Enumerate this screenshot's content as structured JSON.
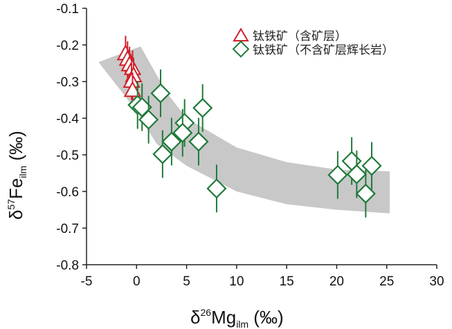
{
  "chart_data": {
    "type": "scatter",
    "xlabel": {
      "main": "δ",
      "sup": "26",
      "base": "Mg",
      "sub": "ilm",
      "unit": " (‰)"
    },
    "ylabel": {
      "main": "δ",
      "sup": "57",
      "base": "Fe",
      "sub": "ilm",
      "unit": " (‰)"
    },
    "xlim": [
      -5,
      30
    ],
    "ylim": [
      -0.8,
      -0.1
    ],
    "xticks": [
      -5,
      0,
      5,
      10,
      15,
      20,
      25,
      30
    ],
    "yticks": [
      -0.1,
      -0.2,
      -0.3,
      -0.4,
      -0.5,
      -0.6,
      -0.7,
      -0.8
    ],
    "ytick_labels": [
      "-0.1",
      "-0.2",
      "-0.3",
      "-0.4",
      "-0.5",
      "-0.6",
      "-0.7",
      "-0.8"
    ],
    "legend_position": "top-right",
    "series": [
      {
        "name": "钛铁矿（含矿层）",
        "marker": "triangle",
        "color": "#d0202a",
        "error": 0.05,
        "points": [
          [
            -1.1,
            -0.225
          ],
          [
            -0.9,
            -0.24
          ],
          [
            -0.7,
            -0.255
          ],
          [
            -0.4,
            -0.265
          ],
          [
            -0.3,
            -0.285
          ],
          [
            -0.5,
            -0.3
          ],
          [
            -0.4,
            -0.325
          ]
        ]
      },
      {
        "name": "钛铁矿（不含矿层辉长岩）",
        "marker": "diamond",
        "color": "#1f7a3a",
        "error": 0.065,
        "points": [
          [
            2.4,
            -0.332
          ],
          [
            0.1,
            -0.364
          ],
          [
            0.55,
            -0.37
          ],
          [
            1.2,
            -0.404
          ],
          [
            6.6,
            -0.372
          ],
          [
            4.8,
            -0.413
          ],
          [
            4.6,
            -0.44
          ],
          [
            3.5,
            -0.464
          ],
          [
            6.2,
            -0.464
          ],
          [
            2.6,
            -0.498
          ],
          [
            8.0,
            -0.592
          ],
          [
            20.1,
            -0.555
          ],
          [
            21.5,
            -0.517
          ],
          [
            22.0,
            -0.553
          ],
          [
            23.5,
            -0.53
          ],
          [
            22.9,
            -0.606
          ]
        ]
      }
    ],
    "trend_band": {
      "color": "#c8c8c8",
      "upper": [
        [
          0.4,
          -0.204
        ],
        [
          3,
          -0.33
        ],
        [
          5,
          -0.4
        ],
        [
          10,
          -0.48
        ],
        [
          15,
          -0.52
        ],
        [
          20,
          -0.54
        ],
        [
          25.3,
          -0.545
        ]
      ],
      "lower": [
        [
          -3.8,
          -0.247
        ],
        [
          0,
          -0.38
        ],
        [
          2,
          -0.47
        ],
        [
          5,
          -0.53
        ],
        [
          10,
          -0.6
        ],
        [
          15,
          -0.635
        ],
        [
          20,
          -0.65
        ],
        [
          25.3,
          -0.66
        ]
      ]
    }
  }
}
